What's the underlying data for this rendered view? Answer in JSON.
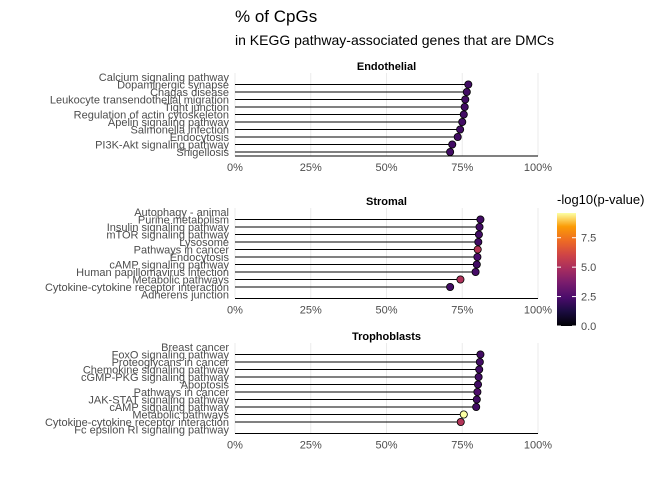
{
  "chart_data": {
    "type": "lollipop",
    "title": "% of CpGs",
    "subtitle": "in KEGG pathway-associated genes that are DMCs",
    "x_ticks": [
      "0%",
      "25%",
      "50%",
      "75%",
      "100%"
    ],
    "xlim": [
      0,
      100
    ],
    "legend": {
      "title": "-log10(p-value)",
      "ticks": [
        "0.0",
        "2.5",
        "5.0",
        "7.5"
      ],
      "tick_values": [
        0,
        2.5,
        5,
        7.5
      ],
      "range": [
        0,
        9.6
      ],
      "placement": "right"
    },
    "panels": [
      {
        "name": "Endothelial",
        "items": [
          {
            "label": "Calcium signaling pathway",
            "value": 0,
            "color_value": null
          },
          {
            "label": "Dopaminergic synapse",
            "value": 77,
            "color_value": 2.2
          },
          {
            "label": "Chagas disease",
            "value": 76.5,
            "color_value": 2.2
          },
          {
            "label": "Leukocyte transendothelial migration",
            "value": 76,
            "color_value": 2.2
          },
          {
            "label": "Tight junction",
            "value": 75.8,
            "color_value": 2.2
          },
          {
            "label": "Regulation of actin cytoskeleton",
            "value": 75.5,
            "color_value": 2.2
          },
          {
            "label": "Apelin signaling pathway",
            "value": 75,
            "color_value": 2.2
          },
          {
            "label": "Salmonella infection",
            "value": 74.3,
            "color_value": 2.2
          },
          {
            "label": "Endocytosis",
            "value": 73.5,
            "color_value": 2.2
          },
          {
            "label": "PI3K-Akt signaling pathway",
            "value": 71.7,
            "color_value": 2.2
          },
          {
            "label": "Shigellosis",
            "value": 71,
            "color_value": 2.2
          }
        ]
      },
      {
        "name": "Stromal",
        "items": [
          {
            "label": "Autophagy - animal",
            "value": 0,
            "color_value": null
          },
          {
            "label": "Purine metabolism",
            "value": 81,
            "color_value": 2.2
          },
          {
            "label": "Insulin signaling pathway",
            "value": 80.7,
            "color_value": 2.2
          },
          {
            "label": "mTOR signaling pathway",
            "value": 80.5,
            "color_value": 2.2
          },
          {
            "label": "Lysosome",
            "value": 80.3,
            "color_value": 2.2
          },
          {
            "label": "Pathways in cancer",
            "value": 80.1,
            "color_value": 5.3
          },
          {
            "label": "Endocytosis",
            "value": 80,
            "color_value": 2.4
          },
          {
            "label": "cAMP signaling pathway",
            "value": 79.8,
            "color_value": 2.2
          },
          {
            "label": "Human papillomavirus infection",
            "value": 79.4,
            "color_value": 2.3
          },
          {
            "label": "Metabolic pathways",
            "value": 74.4,
            "color_value": 5.1
          },
          {
            "label": "Cytokine-cytokine receptor interaction",
            "value": 71,
            "color_value": 2.2
          },
          {
            "label": "Adherens junction",
            "value": 0,
            "color_value": null
          }
        ]
      },
      {
        "name": "Trophoblasts",
        "items": [
          {
            "label": "Breast cancer",
            "value": 0,
            "color_value": null
          },
          {
            "label": "FoxO signaling pathway",
            "value": 81,
            "color_value": 2.2
          },
          {
            "label": "Proteoglycans in cancer",
            "value": 80.8,
            "color_value": 2.2
          },
          {
            "label": "Chemokine signaling pathway",
            "value": 80.6,
            "color_value": 2.2
          },
          {
            "label": "cGMP-PKG signaling pathway",
            "value": 80.4,
            "color_value": 2.2
          },
          {
            "label": "Apoptosis",
            "value": 80.2,
            "color_value": 2.2
          },
          {
            "label": "Pathways in cancer",
            "value": 80,
            "color_value": 2.5
          },
          {
            "label": "JAK-STAT signaling pathway",
            "value": 79.8,
            "color_value": 2.2
          },
          {
            "label": "cAMP signaling pathway",
            "value": 79.6,
            "color_value": 2.2
          },
          {
            "label": "Metabolic pathways",
            "value": 75.5,
            "color_value": 9.6
          },
          {
            "label": "Cytokine-cytokine receptor interaction",
            "value": 74.5,
            "color_value": 5.2
          },
          {
            "label": "Fc epsilon RI signaling pathway",
            "value": 0,
            "color_value": null
          }
        ]
      }
    ]
  }
}
